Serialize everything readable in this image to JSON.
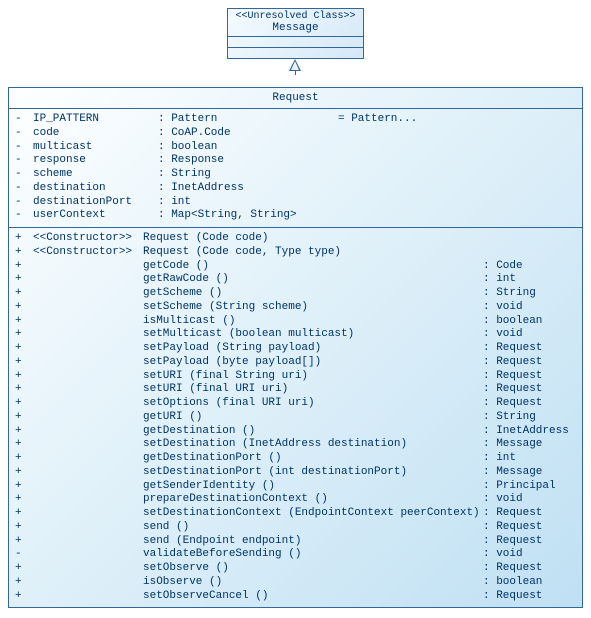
{
  "colors": {
    "border": "#336699",
    "text": "#003366",
    "gradient_top_start": "#f4fbff",
    "gradient_top_end": "#d4e8f7",
    "gradient_req_start": "#fdffff",
    "gradient_req_end": "#bfe0f3"
  },
  "topClass": {
    "stereotype": "<<Unresolved Class>>",
    "name": "Message"
  },
  "req": {
    "name": "Request",
    "attrs": [
      {
        "vis": "-",
        "name": "IP_PATTERN",
        "type": ": Pattern",
        "val": "= Pattern..."
      },
      {
        "vis": "-",
        "name": "code",
        "type": ": CoAP.Code",
        "val": ""
      },
      {
        "vis": "-",
        "name": "multicast",
        "type": ": boolean",
        "val": ""
      },
      {
        "vis": "-",
        "name": "response",
        "type": ": Response",
        "val": ""
      },
      {
        "vis": "-",
        "name": "scheme",
        "type": ": String",
        "val": ""
      },
      {
        "vis": "-",
        "name": "destination",
        "type": ": InetAddress",
        "val": ""
      },
      {
        "vis": "-",
        "name": "destinationPort",
        "type": ": int",
        "val": ""
      },
      {
        "vis": "-",
        "name": "userContext",
        "type": ": Map<String, String>",
        "val": ""
      }
    ],
    "ops": [
      {
        "vis": "+",
        "st": "<<Constructor>>",
        "sig": "Request (Code code)",
        "ret": ""
      },
      {
        "vis": "+",
        "st": "<<Constructor>>",
        "sig": "Request (Code code, Type type)",
        "ret": ""
      },
      {
        "vis": "+",
        "st": "",
        "sig": "getCode ()",
        "ret": ": Code"
      },
      {
        "vis": "+",
        "st": "",
        "sig": "getRawCode ()",
        "ret": ": int"
      },
      {
        "vis": "+",
        "st": "",
        "sig": "getScheme ()",
        "ret": ": String"
      },
      {
        "vis": "+",
        "st": "",
        "sig": "setScheme (String scheme)",
        "ret": ": void"
      },
      {
        "vis": "+",
        "st": "",
        "sig": "isMulticast ()",
        "ret": ": boolean"
      },
      {
        "vis": "+",
        "st": "",
        "sig": "setMulticast (boolean multicast)",
        "ret": ": void"
      },
      {
        "vis": "+",
        "st": "",
        "sig": "setPayload (String payload)",
        "ret": ": Request"
      },
      {
        "vis": "+",
        "st": "",
        "sig": "setPayload (byte payload[])",
        "ret": ": Request"
      },
      {
        "vis": "+",
        "st": "",
        "sig": "setURI (final String uri)",
        "ret": ": Request"
      },
      {
        "vis": "+",
        "st": "",
        "sig": "setURI (final URI uri)",
        "ret": ": Request"
      },
      {
        "vis": "+",
        "st": "",
        "sig": "setOptions (final URI uri)",
        "ret": ": Request"
      },
      {
        "vis": "+",
        "st": "",
        "sig": "getURI ()",
        "ret": ": String"
      },
      {
        "vis": "+",
        "st": "",
        "sig": "getDestination ()",
        "ret": ": InetAddress"
      },
      {
        "vis": "+",
        "st": "",
        "sig": "setDestination (InetAddress destination)",
        "ret": ": Message"
      },
      {
        "vis": "+",
        "st": "",
        "sig": "getDestinationPort ()",
        "ret": ": int"
      },
      {
        "vis": "+",
        "st": "",
        "sig": "setDestinationPort (int destinationPort)",
        "ret": ": Message"
      },
      {
        "vis": "+",
        "st": "",
        "sig": "getSenderIdentity ()",
        "ret": ": Principal"
      },
      {
        "vis": "+",
        "st": "",
        "sig": "prepareDestinationContext ()",
        "ret": ": void"
      },
      {
        "vis": "+",
        "st": "",
        "sig": "setDestinationContext (EndpointContext peerContext)",
        "ret": ": Request"
      },
      {
        "vis": "+",
        "st": "",
        "sig": "send ()",
        "ret": ": Request"
      },
      {
        "vis": "+",
        "st": "",
        "sig": "send (Endpoint endpoint)",
        "ret": ": Request"
      },
      {
        "vis": "-",
        "st": "",
        "sig": "validateBeforeSending ()",
        "ret": ": void"
      },
      {
        "vis": "+",
        "st": "",
        "sig": "setObserve ()",
        "ret": ": Request"
      },
      {
        "vis": "+",
        "st": "",
        "sig": "isObserve ()",
        "ret": ": boolean"
      },
      {
        "vis": "+",
        "st": "",
        "sig": "setObserveCancel ()",
        "ret": ": Request"
      }
    ]
  }
}
